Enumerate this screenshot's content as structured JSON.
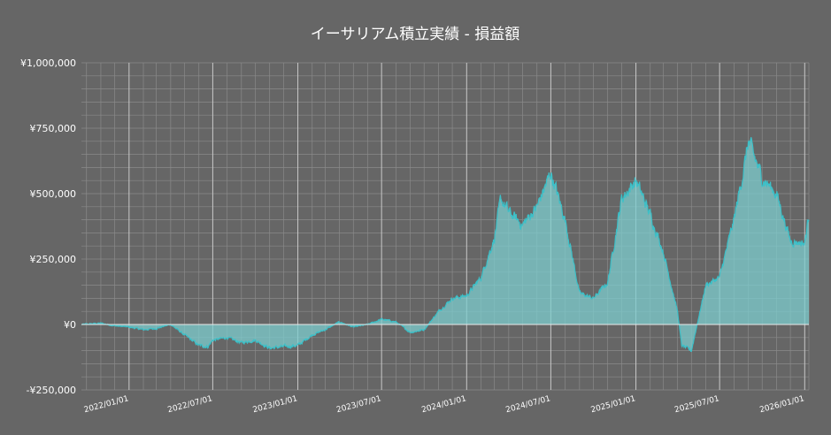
{
  "chart_data": {
    "type": "area",
    "title": "イーサリアム積立実績 - 損益額",
    "xlabel": "",
    "ylabel": "",
    "ylim": [
      -250000,
      1000000
    ],
    "y_ticks": [
      -250000,
      0,
      250000,
      500000,
      750000,
      1000000
    ],
    "y_tick_labels": [
      "-¥250,000",
      "¥0",
      "¥250,000",
      "¥500,000",
      "¥750,000",
      "¥1,000,000"
    ],
    "x_tick_labels": [
      "2022/01/01",
      "2022/07/01",
      "2023/01/01",
      "2023/07/01",
      "2024/01/01",
      "2024/07/01",
      "2025/01/01",
      "2025/07/01",
      "2026/01/01"
    ],
    "xlim": [
      "2021/09/20",
      "2026/01/10"
    ],
    "grid": true,
    "colors": {
      "line": "#3cc0c8",
      "fill": "#7ececf",
      "background": "#666666",
      "grid": "#8a8a8a",
      "text": "#ffffff"
    },
    "series": [
      {
        "x": [
          "2021/09/20",
          "2021/11/01",
          "2021/12/01",
          "2022/01/01",
          "2022/02/01",
          "2022/03/01",
          "2022/04/01",
          "2022/05/01",
          "2022/06/01",
          "2022/06/20",
          "2022/07/01",
          "2022/08/01",
          "2022/09/01",
          "2022/10/01",
          "2022/11/01",
          "2022/12/01",
          "2023/01/01",
          "2023/02/01",
          "2023/03/01",
          "2023/04/01",
          "2023/05/01",
          "2023/06/01",
          "2023/07/01",
          "2023/08/01",
          "2023/09/01",
          "2023/10/01",
          "2023/11/01",
          "2023/12/01",
          "2024/01/01",
          "2024/02/01",
          "2024/03/01",
          "2024/03/15",
          "2024/04/01",
          "2024/05/01",
          "2024/06/01",
          "2024/07/01",
          "2024/08/01",
          "2024/09/01",
          "2024/10/01",
          "2024/11/01",
          "2024/12/01",
          "2025/01/01",
          "2025/02/01",
          "2025/03/01",
          "2025/04/01",
          "2025/04/10",
          "2025/05/01",
          "2025/06/01",
          "2025/07/01",
          "2025/08/01",
          "2025/08/25",
          "2025/09/01",
          "2025/10/01",
          "2025/11/01",
          "2025/12/01",
          "2026/01/01",
          "2026/01/10"
        ],
        "values": [
          0,
          5000,
          -5000,
          -10000,
          -20000,
          -15000,
          0,
          -40000,
          -80000,
          -85000,
          -60000,
          -50000,
          -70000,
          -60000,
          -90000,
          -85000,
          -80000,
          -40000,
          -20000,
          10000,
          -10000,
          0,
          20000,
          10000,
          -30000,
          -20000,
          50000,
          100000,
          110000,
          180000,
          330000,
          480000,
          430000,
          380000,
          450000,
          580000,
          400000,
          120000,
          100000,
          160000,
          480000,
          550000,
          420000,
          280000,
          50000,
          -80000,
          -100000,
          150000,
          180000,
          400000,
          620000,
          700000,
          560000,
          500000,
          320000,
          310000,
          420000
        ]
      }
    ]
  }
}
